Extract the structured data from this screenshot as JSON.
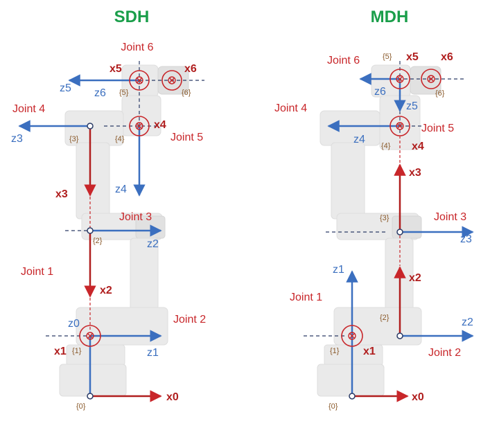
{
  "colors": {
    "title": "#1a9e4a",
    "red": "#c8262a",
    "darkred": "#b01e1e",
    "blue": "#3b6fbf",
    "brown": "#8a5a2b",
    "dash": "#2a3b66"
  },
  "sdh": {
    "title": "SDH",
    "joints": [
      "Joint 6",
      "Joint 4",
      "Joint 5",
      "Joint 3",
      "Joint 1",
      "Joint 2"
    ],
    "axes": {
      "x5": "x5",
      "x6": "x6",
      "z5": "z5",
      "z6": "z6",
      "x4": "x4",
      "z3": "z3",
      "z4": "z4",
      "x3": "x3",
      "z2": "z2",
      "x2": "x2",
      "z0": "z0",
      "x1": "x1",
      "z1": "z1",
      "x0": "x0"
    },
    "frames": [
      "{5}",
      "{6}",
      "{3}",
      "{4}",
      "{2}",
      "{1}",
      "{0}"
    ]
  },
  "mdh": {
    "title": "MDH",
    "joints": [
      "Joint 6",
      "Joint 4",
      "Joint 5",
      "Joint 3",
      "Joint 1",
      "Joint 2"
    ],
    "axes": {
      "x5": "x5",
      "x6": "x6",
      "z6": "z6",
      "z5": "z5",
      "z4": "z4",
      "x4": "x4",
      "x3": "x3",
      "z3": "z3",
      "z1": "z1",
      "x2": "x2",
      "z2": "z2",
      "x1": "x1",
      "x0": "x0"
    },
    "frames": [
      "{5}",
      "{6}",
      "{4}",
      "{3}",
      "{2}",
      "{1}",
      "{0}"
    ]
  }
}
